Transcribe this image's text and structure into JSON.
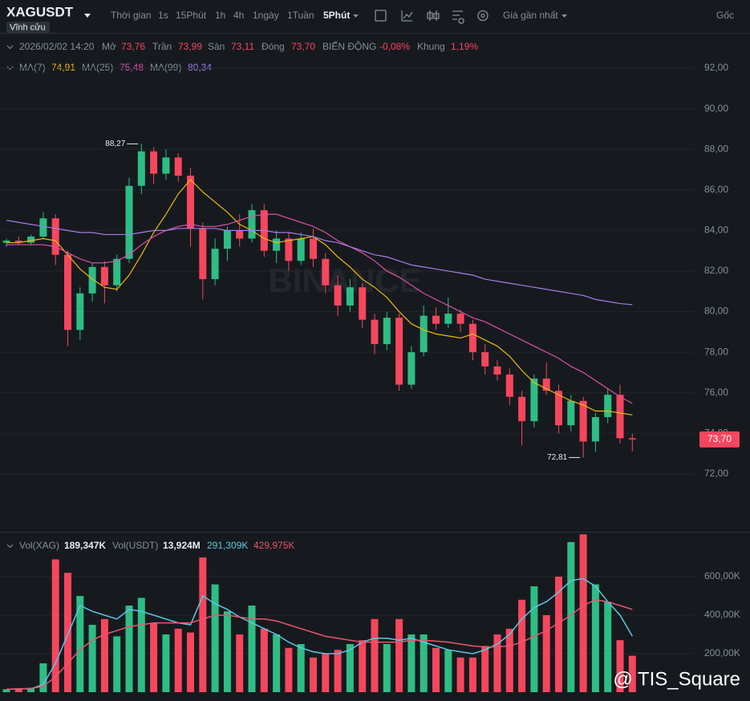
{
  "header": {
    "symbol": "XAGUSDT",
    "contract": "Vĩnh cửu",
    "toolbar": [
      "Thời gian",
      "1s",
      "15Phút",
      "1h",
      "4h",
      "1ngày",
      "1Tuần"
    ],
    "interval": "5Phút",
    "price_type": "Giá gần nhất",
    "scale": "Gốc"
  },
  "watermark": "BINANCE",
  "credit": "@ TIS_Square",
  "chart_data": [
    {
      "type": "candlestick",
      "info": {
        "time": "2026/02/02 14:20",
        "open_label": "Mở",
        "open": "73,76",
        "high_label": "Trần",
        "high": "73,99",
        "low_label": "Sàn",
        "low": "73,11",
        "close_label": "Đóng",
        "close": "73,70",
        "change_label": "BIẾN ĐỘNG",
        "change": "-0,08%",
        "range_label": "Khung",
        "range": "1,19%"
      },
      "up_color": "#2ebd85",
      "down_color": "#f6465d",
      "open": [
        83.4,
        83.5,
        83.4,
        83.7,
        84.6,
        82.8,
        79.1,
        80.9,
        82.2,
        81.3,
        82.6,
        86.2,
        87.9,
        86.8,
        87.6,
        86.7,
        84.1,
        81.6,
        83.1,
        84.0,
        83.6,
        85.0,
        83.0,
        83.6,
        82.5,
        83.6,
        82.6,
        81.3,
        80.3,
        81.2,
        79.6,
        78.4,
        79.7,
        76.4,
        78.0,
        79.8,
        79.4,
        79.9,
        79.4,
        78.0,
        77.3,
        76.9,
        75.8,
        74.6,
        76.7,
        76.1,
        74.4,
        75.6,
        73.6,
        74.8,
        75.9,
        73.76
      ],
      "high": [
        83.6,
        83.7,
        83.8,
        84.9,
        84.8,
        83.0,
        81.2,
        82.4,
        82.5,
        82.8,
        86.6,
        88.27,
        88.1,
        88.0,
        87.8,
        87.1,
        84.4,
        83.6,
        84.2,
        84.8,
        85.3,
        85.3,
        84.0,
        83.9,
        83.9,
        84.1,
        82.9,
        81.8,
        81.6,
        81.4,
        79.9,
        80.0,
        79.9,
        78.3,
        80.3,
        80.2,
        80.7,
        80.1,
        79.6,
        78.4,
        77.6,
        77.2,
        76.1,
        76.9,
        77.5,
        76.4,
        75.9,
        75.8,
        75.0,
        76.2,
        76.4,
        73.99
      ],
      "low": [
        83.2,
        83.3,
        83.3,
        83.6,
        82.3,
        78.3,
        78.6,
        80.5,
        80.4,
        81.0,
        82.4,
        85.8,
        86.3,
        86.5,
        86.4,
        83.2,
        80.6,
        81.3,
        82.5,
        83.2,
        83.4,
        82.7,
        82.4,
        82.0,
        82.3,
        82.2,
        80.9,
        79.8,
        80.0,
        79.2,
        77.9,
        78.1,
        76.1,
        76.2,
        77.8,
        79.1,
        79.2,
        79.0,
        77.6,
        76.9,
        76.6,
        75.4,
        73.4,
        74.3,
        75.9,
        74.0,
        74.1,
        72.81,
        73.1,
        74.5,
        73.5,
        73.11
      ],
      "close": [
        83.5,
        83.4,
        83.7,
        84.6,
        82.8,
        79.1,
        80.9,
        82.2,
        81.3,
        82.6,
        86.2,
        87.9,
        86.8,
        87.6,
        86.7,
        84.1,
        81.6,
        83.1,
        84.0,
        83.6,
        85.0,
        83.0,
        83.6,
        82.5,
        83.6,
        82.6,
        81.3,
        80.3,
        81.2,
        79.6,
        78.4,
        79.7,
        76.4,
        78.0,
        79.8,
        79.4,
        79.9,
        79.4,
        78.0,
        77.3,
        76.9,
        75.8,
        74.6,
        76.7,
        76.1,
        74.4,
        75.6,
        73.6,
        74.8,
        75.9,
        73.76,
        73.7
      ],
      "series": [
        {
          "name": "MA(7)",
          "color": "#f0b90b",
          "legend_value": "74,91",
          "values": [
            83.4,
            83.4,
            83.5,
            83.6,
            83.5,
            82.8,
            82.1,
            81.6,
            81.2,
            81.1,
            81.8,
            82.8,
            83.9,
            84.8,
            85.8,
            86.5,
            85.9,
            85.4,
            84.9,
            84.3,
            84.0,
            83.6,
            83.4,
            83.5,
            83.6,
            83.7,
            83.3,
            82.7,
            82.2,
            81.6,
            81.2,
            80.7,
            80.0,
            79.4,
            79.1,
            78.9,
            78.8,
            78.7,
            78.9,
            78.6,
            78.3,
            77.8,
            77.1,
            76.5,
            76.2,
            75.9,
            75.6,
            75.4,
            75.1,
            75.1,
            75.0,
            74.91
          ]
        },
        {
          "name": "MA(25)",
          "color": "#e04fab",
          "legend_value": "75,48",
          "values": [
            83.3,
            83.3,
            83.3,
            83.3,
            83.2,
            82.9,
            82.6,
            82.4,
            82.4,
            82.5,
            82.8,
            83.3,
            83.7,
            84.0,
            84.2,
            84.3,
            84.2,
            84.2,
            84.3,
            84.5,
            84.7,
            84.8,
            84.8,
            84.6,
            84.4,
            84.2,
            83.9,
            83.5,
            83.2,
            82.9,
            82.5,
            82.0,
            81.7,
            81.3,
            80.9,
            80.6,
            80.3,
            80.0,
            79.7,
            79.5,
            79.2,
            78.9,
            78.6,
            78.3,
            78.0,
            77.7,
            77.3,
            77.0,
            76.6,
            76.2,
            75.8,
            75.48
          ]
        },
        {
          "name": "MA(99)",
          "color": "#a77be8",
          "legend_value": "80,34",
          "values": [
            84.5,
            84.4,
            84.3,
            84.2,
            84.1,
            84.0,
            83.9,
            83.9,
            83.8,
            83.8,
            83.8,
            83.9,
            84.0,
            84.0,
            84.1,
            84.1,
            84.1,
            84.1,
            84.0,
            84.0,
            84.0,
            84.0,
            83.9,
            83.9,
            83.8,
            83.7,
            83.5,
            83.4,
            83.2,
            83.0,
            82.8,
            82.7,
            82.5,
            82.3,
            82.2,
            82.1,
            82.0,
            81.9,
            81.8,
            81.6,
            81.5,
            81.4,
            81.3,
            81.2,
            81.1,
            81.0,
            80.9,
            80.8,
            80.6,
            80.5,
            80.4,
            80.34
          ]
        }
      ],
      "annotations": [
        {
          "value": 88.27,
          "label": "88,27"
        },
        {
          "value": 72.81,
          "label": "72,81"
        }
      ],
      "last_price": {
        "value": 73.7,
        "label": "73,70"
      },
      "ylim": [
        69.15,
        93.7
      ],
      "yticks": [
        {
          "value": 72,
          "label": "72,00"
        },
        {
          "value": 74,
          "label": "74,00"
        },
        {
          "value": 76,
          "label": "76,00"
        },
        {
          "value": 78,
          "label": "78,00"
        },
        {
          "value": 80,
          "label": "80,00"
        },
        {
          "value": 82,
          "label": "82,00"
        },
        {
          "value": 84,
          "label": "84,00"
        },
        {
          "value": 86,
          "label": "86,00"
        },
        {
          "value": 88,
          "label": "88,00"
        },
        {
          "value": 90,
          "label": "90,00"
        },
        {
          "value": 92,
          "label": "92,00"
        }
      ],
      "grid": true
    },
    {
      "type": "bar",
      "name": "Vol(XAG)",
      "value_label": "189,347K",
      "quote_name": "Vol(USDT)",
      "quote_value": "13,924M",
      "values": [
        15000,
        18000,
        22000,
        150000,
        690000,
        620000,
        500000,
        350000,
        380000,
        290000,
        450000,
        490000,
        360000,
        300000,
        330000,
        310000,
        700000,
        560000,
        420000,
        300000,
        450000,
        330000,
        300000,
        230000,
        250000,
        180000,
        200000,
        220000,
        250000,
        270000,
        380000,
        250000,
        380000,
        300000,
        300000,
        230000,
        220000,
        180000,
        180000,
        240000,
        300000,
        330000,
        480000,
        550000,
        400000,
        600000,
        780000,
        820000,
        560000,
        470000,
        270000,
        189347
      ],
      "series": [
        {
          "color": "#5ec6e6",
          "legend_value": "291,309K",
          "values": [
            15000,
            17000,
            18000,
            40000,
            150000,
            300000,
            450000,
            420000,
            400000,
            380000,
            430000,
            420000,
            400000,
            380000,
            360000,
            350000,
            500000,
            460000,
            430000,
            390000,
            360000,
            330000,
            300000,
            260000,
            230000,
            210000,
            200000,
            200000,
            220000,
            260000,
            280000,
            280000,
            270000,
            280000,
            260000,
            240000,
            220000,
            210000,
            200000,
            220000,
            250000,
            300000,
            380000,
            440000,
            470000,
            520000,
            580000,
            590000,
            550000,
            470000,
            400000,
            291309
          ]
        },
        {
          "color": "#e8566e",
          "legend_value": "429,975K",
          "values": [
            15000,
            17000,
            20000,
            30000,
            80000,
            150000,
            220000,
            270000,
            300000,
            320000,
            340000,
            350000,
            360000,
            360000,
            360000,
            360000,
            380000,
            400000,
            400000,
            390000,
            380000,
            380000,
            370000,
            350000,
            330000,
            310000,
            290000,
            280000,
            270000,
            260000,
            260000,
            260000,
            260000,
            270000,
            270000,
            265000,
            260000,
            250000,
            240000,
            235000,
            235000,
            240000,
            260000,
            290000,
            320000,
            360000,
            400000,
            450000,
            480000,
            470000,
            450000,
            429975
          ]
        }
      ],
      "ylim": [
        0,
        825000
      ],
      "yticks": [
        {
          "value": 200000,
          "label": "200,00K"
        },
        {
          "value": 400000,
          "label": "400,00K"
        },
        {
          "value": 600000,
          "label": "600,00K"
        }
      ],
      "grid": true
    }
  ]
}
